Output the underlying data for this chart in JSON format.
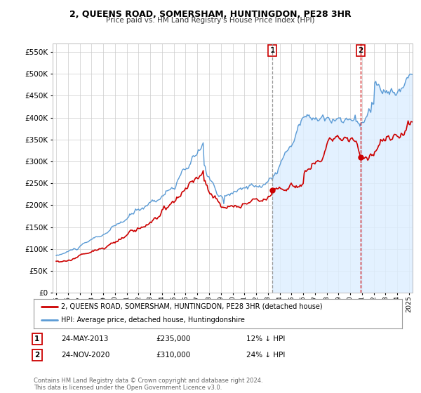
{
  "title": "2, QUEENS ROAD, SOMERSHAM, HUNTINGDON, PE28 3HR",
  "subtitle": "Price paid vs. HM Land Registry's House Price Index (HPI)",
  "background_color": "#ffffff",
  "plot_background": "#ffffff",
  "grid_color": "#cccccc",
  "hpi_color": "#5b9bd5",
  "hpi_fill_color": "#ddeeff",
  "price_color": "#cc0000",
  "ylim": [
    0,
    570000
  ],
  "yticks": [
    0,
    50000,
    100000,
    150000,
    200000,
    250000,
    300000,
    350000,
    400000,
    450000,
    500000,
    550000
  ],
  "sale1_date": 2013.38,
  "sale1_price": 235000,
  "sale1_label": "1",
  "sale2_date": 2020.9,
  "sale2_price": 310000,
  "sale2_label": "2",
  "legend_line1": "2, QUEENS ROAD, SOMERSHAM, HUNTINGDON, PE28 3HR (detached house)",
  "legend_line2": "HPI: Average price, detached house, Huntingdonshire",
  "footer": "Contains HM Land Registry data © Crown copyright and database right 2024.\nThis data is licensed under the Open Government Licence v3.0."
}
